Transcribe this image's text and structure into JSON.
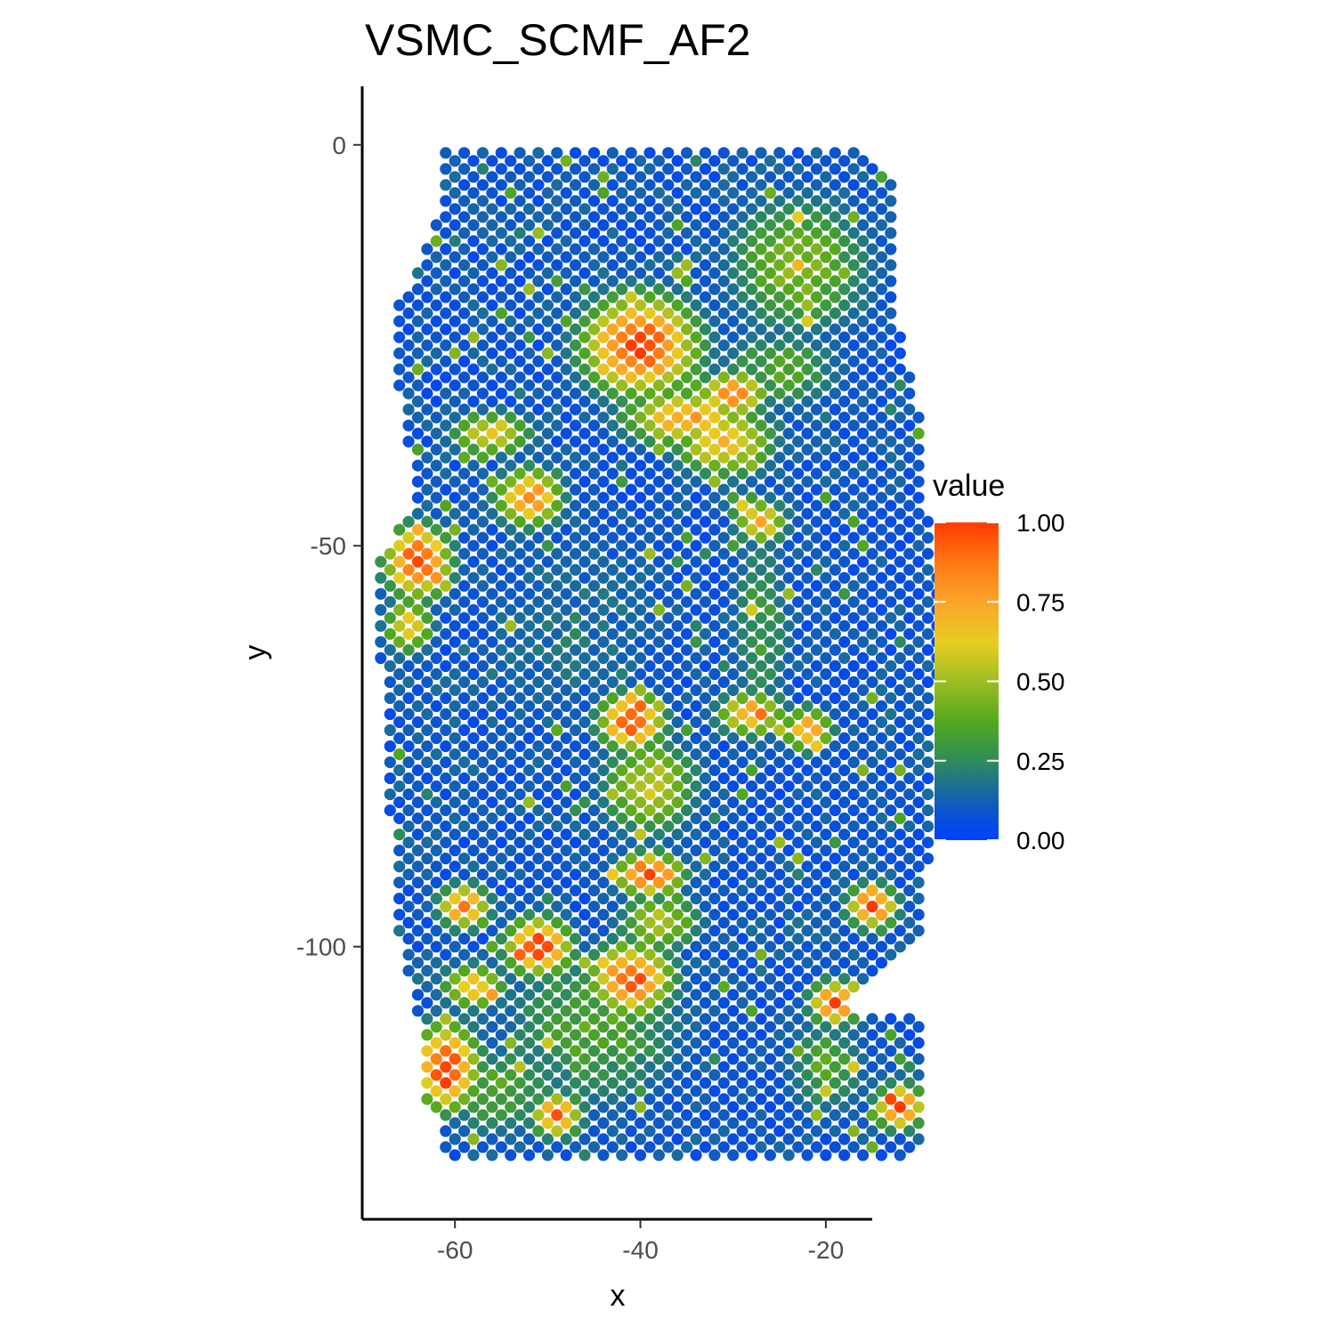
{
  "chart_data": {
    "type": "scatter",
    "title": "VSMC_SCMF_AF2",
    "xlabel": "x",
    "ylabel": "y",
    "xlim": [
      -70,
      -15
    ],
    "ylim": [
      -134,
      7.3
    ],
    "x_ticks": [
      -60,
      -40,
      -20
    ],
    "y_ticks": [
      0,
      -50,
      -100
    ],
    "grid": false,
    "point_spacing": 2,
    "point_value_range": [
      0,
      1
    ],
    "legend": {
      "title": "value",
      "position": "right",
      "breaks": [
        1.0,
        0.75,
        0.5,
        0.25,
        0.0
      ],
      "labels": [
        "1.00",
        "0.75",
        "0.50",
        "0.25",
        "0.00"
      ]
    },
    "color_scale": [
      {
        "value": 0.0,
        "color": "#0040ff"
      },
      {
        "value": 0.1,
        "color": "#0d57c7"
      },
      {
        "value": 0.25,
        "color": "#2f8c5a"
      },
      {
        "value": 0.37,
        "color": "#52a81e"
      },
      {
        "value": 0.5,
        "color": "#9dbd22"
      },
      {
        "value": 0.62,
        "color": "#e8cd22"
      },
      {
        "value": 0.75,
        "color": "#fba428"
      },
      {
        "value": 0.87,
        "color": "#ff7a14"
      },
      {
        "value": 1.0,
        "color": "#ff3a00"
      }
    ],
    "tissue_outline": [
      [
        -61,
        0
      ],
      [
        -17,
        0
      ],
      [
        -12,
        -6
      ],
      [
        -12,
        -23
      ],
      [
        -10,
        -33
      ],
      [
        -9,
        -45
      ],
      [
        -8,
        -52
      ],
      [
        -7,
        -62
      ],
      [
        -8,
        -68
      ],
      [
        -8,
        -78
      ],
      [
        -9,
        -90
      ],
      [
        -10,
        -100
      ],
      [
        -14,
        -103
      ],
      [
        -17,
        -107
      ],
      [
        -16,
        -108
      ],
      [
        -9,
        -109
      ],
      [
        -9,
        -125
      ],
      [
        -10,
        -126
      ],
      [
        -61,
        -126
      ],
      [
        -61,
        -121
      ],
      [
        -63,
        -119
      ],
      [
        -64,
        -108
      ],
      [
        -66,
        -99
      ],
      [
        -66,
        -93
      ],
      [
        -67,
        -84
      ],
      [
        -67,
        -72
      ],
      [
        -68,
        -64
      ],
      [
        -68,
        -52
      ],
      [
        -64,
        -44
      ],
      [
        -66,
        -30
      ],
      [
        -66,
        -20
      ],
      [
        -62,
        -10
      ]
    ],
    "hotspots": [
      {
        "x": -40,
        "y": -25,
        "rx": 7,
        "ry": 7,
        "value": 0.95
      },
      {
        "x": -35,
        "y": -34,
        "rx": 8,
        "ry": 4,
        "value": 0.7
      },
      {
        "x": -31,
        "y": -37,
        "rx": 6,
        "ry": 5,
        "value": 0.65
      },
      {
        "x": -30,
        "y": -31,
        "rx": 4,
        "ry": 3,
        "value": 0.85
      },
      {
        "x": -27,
        "y": -47,
        "rx": 3,
        "ry": 3,
        "value": 0.7
      },
      {
        "x": -52,
        "y": -44,
        "rx": 4,
        "ry": 4,
        "value": 0.8
      },
      {
        "x": -56,
        "y": -36,
        "rx": 5,
        "ry": 3,
        "value": 0.6
      },
      {
        "x": -64,
        "y": -52,
        "rx": 4,
        "ry": 5,
        "value": 0.95
      },
      {
        "x": -65,
        "y": -60,
        "rx": 3,
        "ry": 4,
        "value": 0.6
      },
      {
        "x": -41,
        "y": -72,
        "rx": 4,
        "ry": 4,
        "value": 0.9
      },
      {
        "x": -39,
        "y": -80,
        "rx": 6,
        "ry": 7,
        "value": 0.5
      },
      {
        "x": -28,
        "y": -71,
        "rx": 4,
        "ry": 3,
        "value": 0.75
      },
      {
        "x": -22,
        "y": -73,
        "rx": 3,
        "ry": 3,
        "value": 0.75
      },
      {
        "x": -39,
        "y": -91,
        "rx": 4,
        "ry": 3,
        "value": 0.95
      },
      {
        "x": -51,
        "y": -100,
        "rx": 4,
        "ry": 4,
        "value": 0.95
      },
      {
        "x": -41,
        "y": -104,
        "rx": 5,
        "ry": 5,
        "value": 0.9
      },
      {
        "x": -38,
        "y": -97,
        "rx": 5,
        "ry": 4,
        "value": 0.5
      },
      {
        "x": -61,
        "y": -115,
        "rx": 4,
        "ry": 6,
        "value": 0.95
      },
      {
        "x": -58,
        "y": -105,
        "rx": 4,
        "ry": 3,
        "value": 0.65
      },
      {
        "x": -59,
        "y": -95,
        "rx": 3,
        "ry": 3,
        "value": 0.85
      },
      {
        "x": -49,
        "y": -121,
        "rx": 3,
        "ry": 3,
        "value": 0.85
      },
      {
        "x": -12,
        "y": -120,
        "rx": 3,
        "ry": 3,
        "value": 0.95
      },
      {
        "x": -15,
        "y": -95,
        "rx": 3,
        "ry": 3,
        "value": 0.9
      },
      {
        "x": -19,
        "y": -107,
        "rx": 3,
        "ry": 3,
        "value": 0.9
      },
      {
        "x": -29,
        "y": -45,
        "rx": 2,
        "ry": 2,
        "value": 0.5
      },
      {
        "x": -23,
        "y": -15,
        "rx": 9,
        "ry": 10,
        "value": 0.4
      },
      {
        "x": -25,
        "y": -28,
        "rx": 8,
        "ry": 6,
        "value": 0.3
      },
      {
        "x": -27,
        "y": -60,
        "rx": 4,
        "ry": 15,
        "value": 0.25
      },
      {
        "x": -47,
        "y": -60,
        "rx": 14,
        "ry": 16,
        "value": 0.12
      },
      {
        "x": -45,
        "y": -110,
        "rx": 12,
        "ry": 12,
        "value": 0.3
      },
      {
        "x": -55,
        "y": -118,
        "rx": 8,
        "ry": 7,
        "value": 0.3
      },
      {
        "x": -20,
        "y": -115,
        "rx": 5,
        "ry": 7,
        "value": 0.3
      }
    ]
  }
}
